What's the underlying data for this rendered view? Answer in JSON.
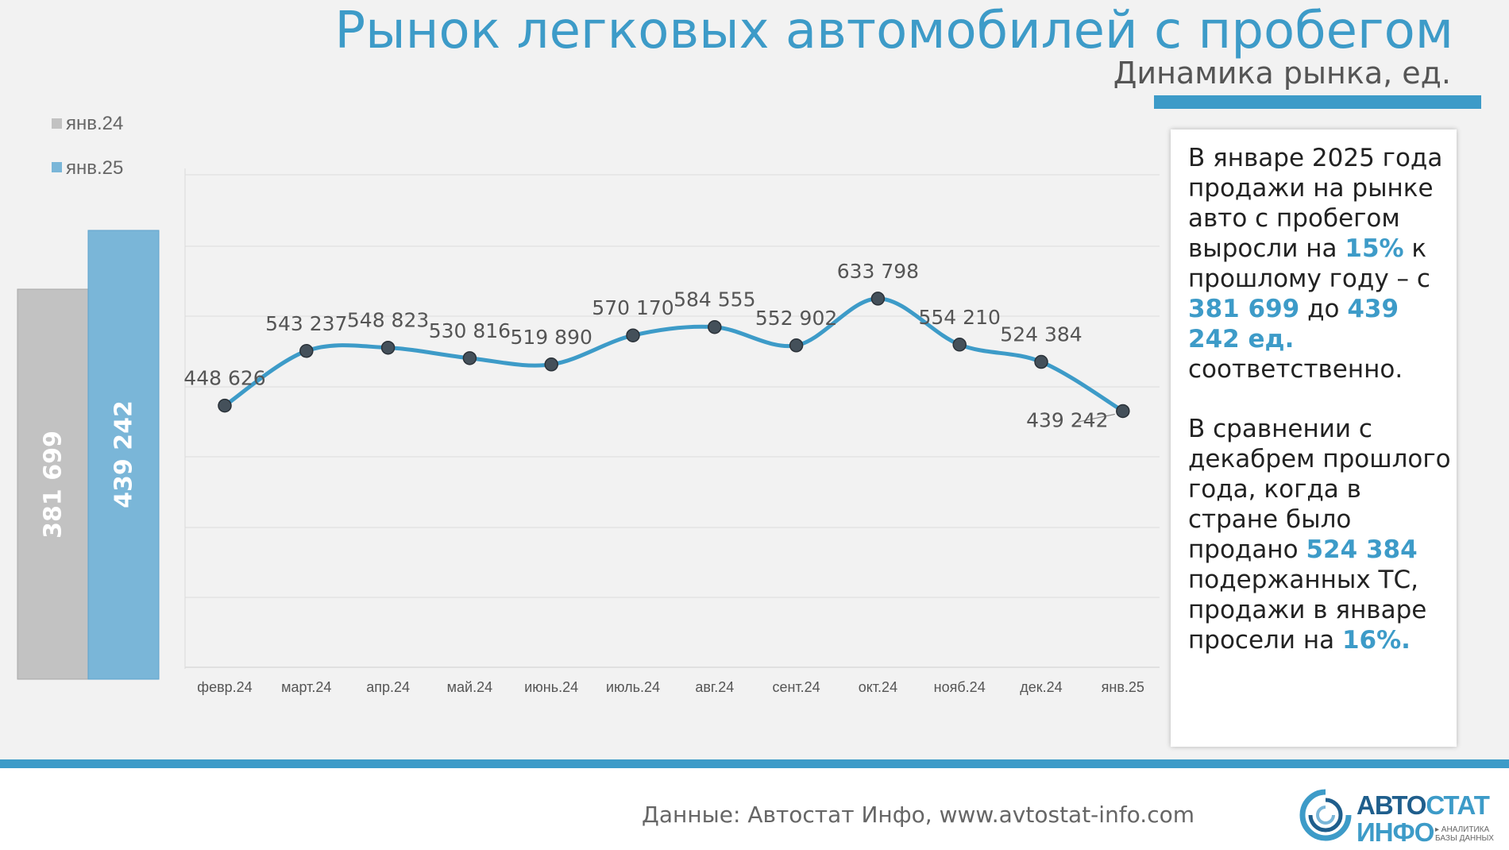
{
  "header": {
    "title": "Рынок легковых автомобилей с пробегом",
    "subtitle": "Динамика рынка, ед."
  },
  "colors": {
    "accent": "#3d9bc8",
    "bar_prev": "#c2c2c2",
    "bar_curr": "#7ab6d8",
    "line": "#3d9bc8",
    "marker": "#44505a"
  },
  "chart_data": [
    {
      "type": "bar",
      "categories": [
        "янв.24",
        "янв.25"
      ],
      "values": [
        381699,
        439242
      ],
      "value_labels": [
        "381 699",
        "439 242"
      ],
      "legend": [
        "янв.24",
        "янв.25"
      ],
      "legend_position": "top-left",
      "ylim": [
        0,
        700000
      ]
    },
    {
      "type": "line",
      "categories": [
        "февр.24",
        "март.24",
        "апр.24",
        "май.24",
        "июнь.24",
        "июль.24",
        "авг.24",
        "сент.24",
        "окт.24",
        "нояб.24",
        "дек.24",
        "янв.25"
      ],
      "values": [
        448626,
        543237,
        548823,
        530816,
        519890,
        570170,
        584555,
        552902,
        633798,
        554210,
        524384,
        439242
      ],
      "value_labels": [
        "448 626",
        "543 237",
        "548 823",
        "530 816",
        "519 890",
        "570 170",
        "584 555",
        "552 902",
        "633 798",
        "554 210",
        "524 384",
        "439 242"
      ],
      "ylim": [
        0,
        700000
      ],
      "grid": true
    }
  ],
  "summary": {
    "p1_a": "В январе 2025 года продажи на рынке авто с пробегом выросли на ",
    "p1_pct": "15%",
    "p1_b": " к прошлому году – с ",
    "p1_v1": "381 699",
    "p1_c": " до ",
    "p1_v2": "439 242 ед.",
    "p1_d": " соответственно.",
    "p2_a": "В сравнении с декабрем прошлого года, когда в стране было продано ",
    "p2_v": "524 384",
    "p2_b": " подержанных ТС, продажи в январе просели на ",
    "p2_pct": "16%."
  },
  "footer": {
    "source": "Данные: Автостат Инфо, www.avtostat-info.com"
  },
  "logo": {
    "top_a": "АВТО",
    "top_b": "СТАТ",
    "bottom": "ИНФО",
    "tag_1": "▸ АНАЛИТИКА",
    "tag_2": "БАЗЫ ДАННЫХ"
  }
}
